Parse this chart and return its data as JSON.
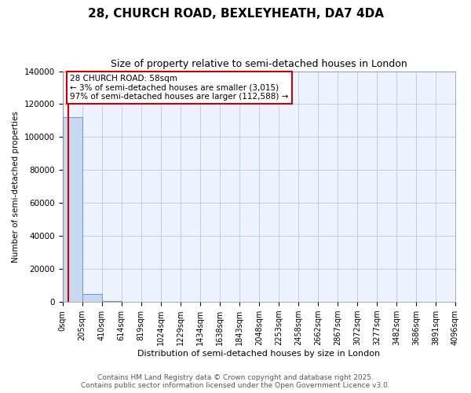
{
  "title": "28, CHURCH ROAD, BEXLEYHEATH, DA7 4DA",
  "subtitle": "Size of property relative to semi-detached houses in London",
  "xlabel": "Distribution of semi-detached houses by size in London",
  "ylabel": "Number of semi-detached properties",
  "bar_edges": [
    0,
    205,
    410,
    614,
    819,
    1024,
    1229,
    1434,
    1638,
    1843,
    2048,
    2253,
    2458,
    2662,
    2867,
    3072,
    3277,
    3482,
    3686,
    3891,
    4096
  ],
  "bar_heights": [
    112000,
    5000,
    600,
    250,
    120,
    60,
    35,
    20,
    12,
    8,
    6,
    4,
    3,
    2,
    2,
    1,
    1,
    1,
    1,
    0
  ],
  "bar_color": "#c8d8f0",
  "bar_edge_color": "#6699cc",
  "property_size": 58,
  "property_line_color": "#cc0000",
  "annotation_text": "28 CHURCH ROAD: 58sqm\n← 3% of semi-detached houses are smaller (3,015)\n97% of semi-detached houses are larger (112,588) →",
  "annotation_box_color": "#ffffff",
  "annotation_border_color": "#cc0000",
  "ylim": [
    0,
    140000
  ],
  "yticks": [
    0,
    20000,
    40000,
    60000,
    80000,
    100000,
    120000,
    140000
  ],
  "footer_line1": "Contains HM Land Registry data © Crown copyright and database right 2025.",
  "footer_line2": "Contains public sector information licensed under the Open Government Licence v3.0.",
  "bg_color": "#eef2fc",
  "grid_color": "#c0cce8",
  "title_fontsize": 11,
  "subtitle_fontsize": 9,
  "ylabel_fontsize": 7.5,
  "xlabel_fontsize": 8,
  "tick_label_fontsize": 7,
  "footer_fontsize": 6.5,
  "annotation_fontsize": 7.5
}
